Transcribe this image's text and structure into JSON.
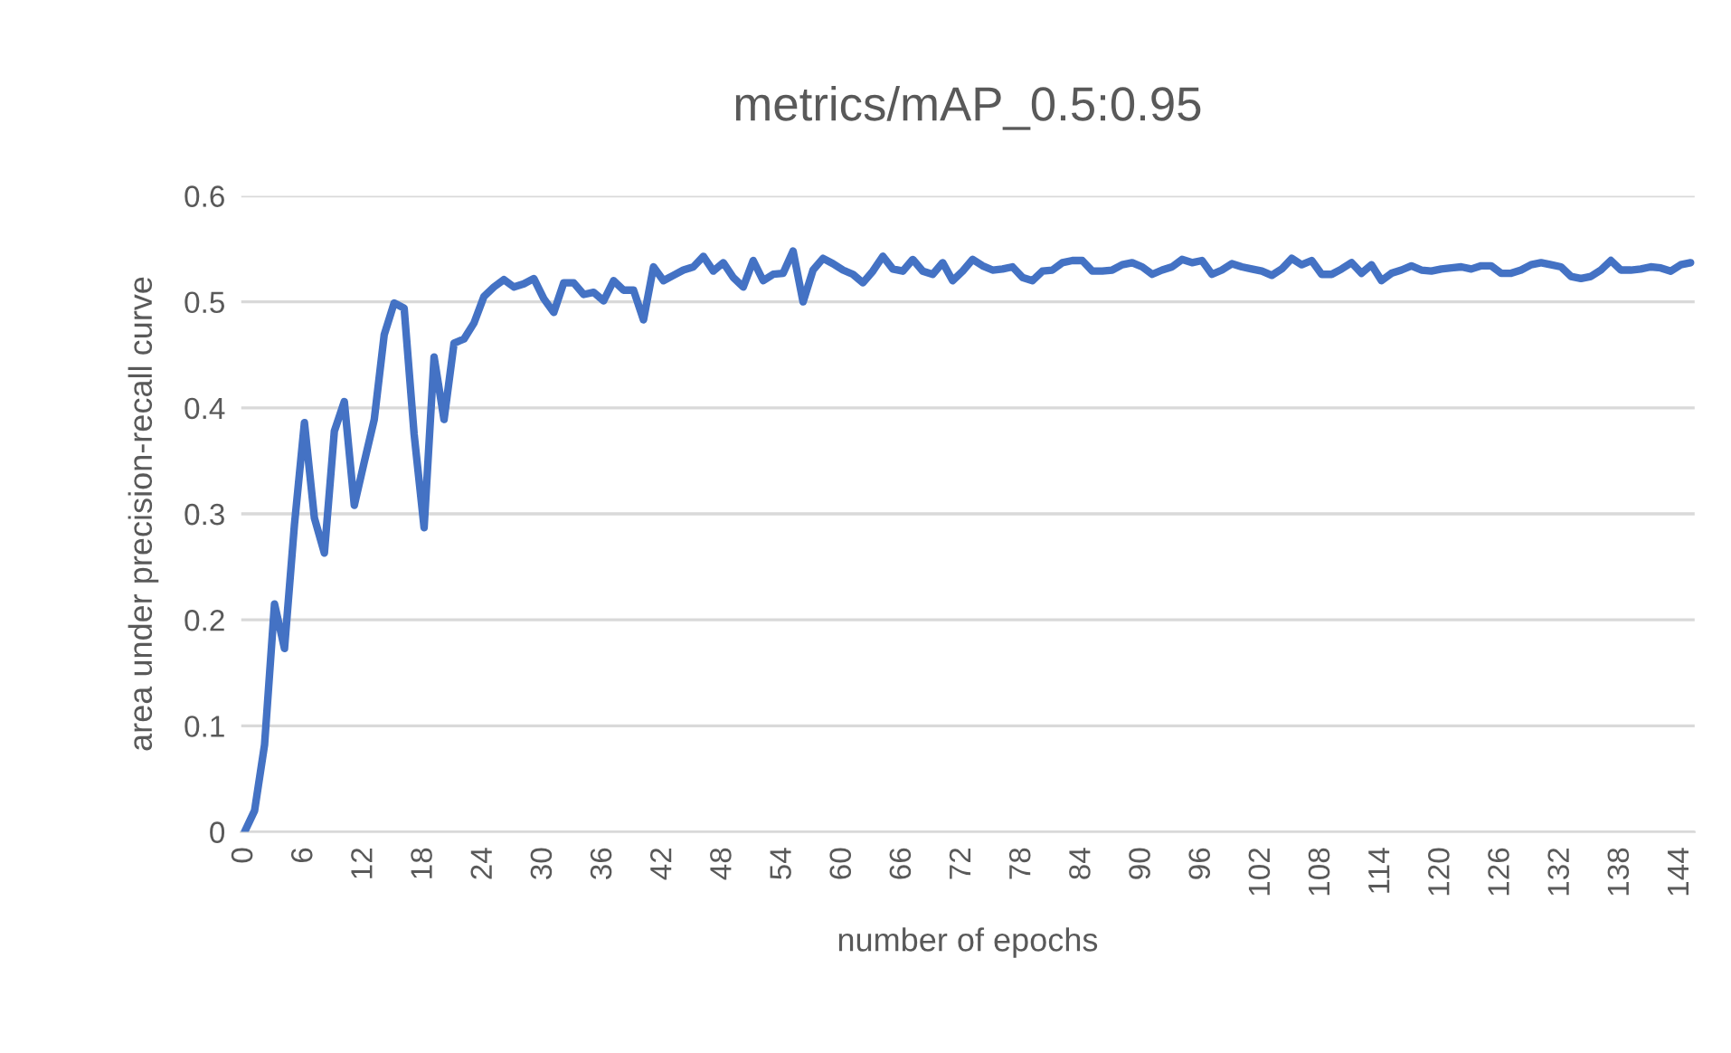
{
  "chart_data": {
    "type": "line",
    "title": "metrics/mAP_0.5:0.95",
    "xlabel": "number of epochs",
    "ylabel": "area under precision-recall curve",
    "categories": [
      "0",
      null,
      null,
      null,
      null,
      null,
      "6",
      null,
      null,
      null,
      null,
      null,
      "12",
      null,
      null,
      null,
      null,
      null,
      "18",
      null,
      null,
      null,
      null,
      null,
      "24",
      null,
      null,
      null,
      null,
      null,
      "30",
      null,
      null,
      null,
      null,
      null,
      "36",
      null,
      null,
      null,
      null,
      null,
      "42",
      null,
      null,
      null,
      null,
      null,
      "48",
      null,
      null,
      null,
      null,
      null,
      "54",
      null,
      null,
      null,
      null,
      null,
      "60",
      null,
      null,
      null,
      null,
      null,
      "66",
      null,
      null,
      null,
      null,
      null,
      "72",
      null,
      null,
      null,
      null,
      null,
      "78",
      null,
      null,
      null,
      null,
      null,
      "84",
      null,
      null,
      null,
      null,
      null,
      "90",
      null,
      null,
      null,
      null,
      null,
      "96",
      null,
      null,
      null,
      null,
      null,
      "102",
      null,
      null,
      null,
      null,
      null,
      "108",
      null,
      null,
      null,
      null,
      null,
      "114",
      null,
      null,
      null,
      null,
      null,
      "120",
      null,
      null,
      null,
      null,
      null,
      "126",
      null,
      null,
      null,
      null,
      null,
      "132",
      null,
      null,
      null,
      null,
      null,
      "138",
      null,
      null,
      null,
      null,
      null,
      "144",
      null
    ],
    "series": [
      {
        "color": "#4472c4",
        "values": [
          0.0,
          0.02,
          0.082,
          0.215,
          0.173,
          0.29,
          0.386,
          0.296,
          0.263,
          0.378,
          0.406,
          0.308,
          0.349,
          0.389,
          0.469,
          0.499,
          0.494,
          0.375,
          0.287,
          0.448,
          0.389,
          0.461,
          0.465,
          0.48,
          0.505,
          0.514,
          0.521,
          0.514,
          0.517,
          0.522,
          0.503,
          0.49,
          0.518,
          0.518,
          0.507,
          0.509,
          0.501,
          0.52,
          0.511,
          0.511,
          0.483,
          0.533,
          0.52,
          0.525,
          0.53,
          0.533,
          0.543,
          0.529,
          0.537,
          0.523,
          0.514,
          0.539,
          0.52,
          0.526,
          0.527,
          0.548,
          0.5,
          0.53,
          0.541,
          0.536,
          0.53,
          0.526,
          0.518,
          0.529,
          0.543,
          0.531,
          0.529,
          0.54,
          0.529,
          0.526,
          0.537,
          0.52,
          0.529,
          0.54,
          0.534,
          0.53,
          0.531,
          0.533,
          0.523,
          0.52,
          0.529,
          0.53,
          0.537,
          0.539,
          0.539,
          0.529,
          0.529,
          0.53,
          0.535,
          0.537,
          0.533,
          0.526,
          0.53,
          0.533,
          0.54,
          0.537,
          0.539,
          0.526,
          0.53,
          0.536,
          0.533,
          0.531,
          0.529,
          0.525,
          0.531,
          0.541,
          0.535,
          0.539,
          0.526,
          0.526,
          0.531,
          0.537,
          0.527,
          0.535,
          0.52,
          0.527,
          0.53,
          0.534,
          0.53,
          0.529,
          0.531,
          0.532,
          0.533,
          0.531,
          0.534,
          0.534,
          0.527,
          0.527,
          0.53,
          0.535,
          0.537,
          0.535,
          0.533,
          0.524,
          0.522,
          0.524,
          0.53,
          0.539,
          0.53,
          0.53,
          0.531,
          0.533,
          0.532,
          0.529,
          0.535,
          0.537
        ]
      }
    ],
    "ylim": [
      0,
      0.6
    ],
    "yticks": [
      0,
      0.1,
      0.2,
      0.3,
      0.4,
      0.5,
      0.6
    ],
    "grid": "y",
    "marker": "none",
    "line_style": "solid"
  }
}
